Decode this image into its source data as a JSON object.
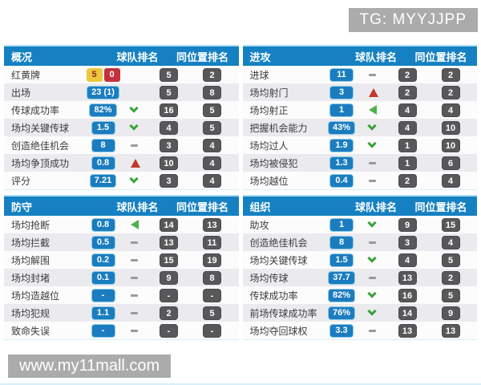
{
  "watermarks": {
    "top": "TG: MYYJJPP",
    "bottom": "www.my11mall.com"
  },
  "columns": {
    "team": "球队排名",
    "position": "同位置排名"
  },
  "colors": {
    "header_blue": "#1581c2",
    "value_badge_blue": "#1b7dc0",
    "rank_badge_gray": "#58585a",
    "yellow_card": "#eec73e",
    "red_card": "#c4303c",
    "trend_green": "#3aa23a",
    "trend_red": "#c0392b",
    "watermark_gray": "#ababab"
  },
  "panels": [
    {
      "title": "概况",
      "rows": [
        {
          "label": "红黄牌",
          "cards": {
            "yellow": "5",
            "red": "0"
          },
          "trend": "none",
          "team_rank": "5",
          "position_rank": "2"
        },
        {
          "label": "出场",
          "value": "23 (1)",
          "trend": "none",
          "team_rank": "5",
          "position_rank": "8"
        },
        {
          "label": "传球成功率",
          "value": "82%",
          "trend": "down",
          "team_rank": "16",
          "position_rank": "5"
        },
        {
          "label": "场均关键传球",
          "value": "1.5",
          "trend": "down",
          "team_rank": "4",
          "position_rank": "5"
        },
        {
          "label": "创造绝佳机会",
          "value": "8",
          "trend": "flat",
          "team_rank": "3",
          "position_rank": "4"
        },
        {
          "label": "场均争顶成功",
          "value": "0.8",
          "trend": "up",
          "team_rank": "10",
          "position_rank": "4"
        },
        {
          "label": "评分",
          "value": "7.21",
          "trend": "down",
          "team_rank": "3",
          "position_rank": "4"
        }
      ]
    },
    {
      "title": "进攻",
      "rows": [
        {
          "label": "进球",
          "value": "11",
          "trend": "flat",
          "team_rank": "2",
          "position_rank": "2"
        },
        {
          "label": "场均射门",
          "value": "3",
          "trend": "up",
          "team_rank": "2",
          "position_rank": "2"
        },
        {
          "label": "场均射正",
          "value": "1",
          "trend": "left",
          "team_rank": "4",
          "position_rank": "4"
        },
        {
          "label": "把握机会能力",
          "value": "43%",
          "trend": "down",
          "team_rank": "4",
          "position_rank": "10"
        },
        {
          "label": "场均过人",
          "value": "1.9",
          "trend": "down",
          "team_rank": "1",
          "position_rank": "10"
        },
        {
          "label": "场均被侵犯",
          "value": "1.3",
          "trend": "flat",
          "team_rank": "1",
          "position_rank": "6"
        },
        {
          "label": "场均越位",
          "value": "0.4",
          "trend": "flat",
          "team_rank": "2",
          "position_rank": "4"
        }
      ]
    },
    {
      "title": "防守",
      "rows": [
        {
          "label": "场均抢断",
          "value": "0.8",
          "trend": "left",
          "team_rank": "14",
          "position_rank": "13"
        },
        {
          "label": "场均拦截",
          "value": "0.5",
          "trend": "flat",
          "team_rank": "13",
          "position_rank": "11"
        },
        {
          "label": "场均解围",
          "value": "0.2",
          "trend": "flat",
          "team_rank": "15",
          "position_rank": "19"
        },
        {
          "label": "场均封堵",
          "value": "0.1",
          "trend": "flat",
          "team_rank": "9",
          "position_rank": "8"
        },
        {
          "label": "场均造越位",
          "value": "-",
          "trend": "flat",
          "team_rank": "-",
          "position_rank": "-"
        },
        {
          "label": "场均犯规",
          "value": "1.1",
          "trend": "flat",
          "team_rank": "2",
          "position_rank": "5"
        },
        {
          "label": "致命失误",
          "value": "-",
          "trend": "flat",
          "team_rank": "-",
          "position_rank": "-"
        }
      ]
    },
    {
      "title": "组织",
      "rows": [
        {
          "label": "助攻",
          "value": "1",
          "trend": "down",
          "team_rank": "9",
          "position_rank": "15"
        },
        {
          "label": "创造绝佳机会",
          "value": "8",
          "trend": "flat",
          "team_rank": "3",
          "position_rank": "4"
        },
        {
          "label": "场均关键传球",
          "value": "1.5",
          "trend": "down",
          "team_rank": "4",
          "position_rank": "5"
        },
        {
          "label": "场均传球",
          "value": "37.7",
          "trend": "flat",
          "team_rank": "13",
          "position_rank": "2"
        },
        {
          "label": "传球成功率",
          "value": "82%",
          "trend": "down",
          "team_rank": "16",
          "position_rank": "5"
        },
        {
          "label": "前场传球成功率",
          "value": "76%",
          "trend": "down",
          "team_rank": "14",
          "position_rank": "9"
        },
        {
          "label": "场均夺回球权",
          "value": "3.3",
          "trend": "flat",
          "team_rank": "13",
          "position_rank": "13"
        }
      ]
    }
  ]
}
